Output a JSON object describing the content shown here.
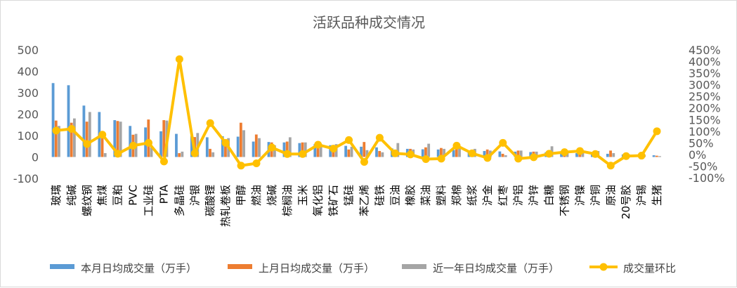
{
  "chart_data": {
    "type": "bar",
    "title": "活跃品种成交情况",
    "categories": [
      "玻璃",
      "纯碱",
      "螺纹钢",
      "焦煤",
      "豆粕",
      "PVC",
      "工业硅",
      "PTA",
      "多晶硅",
      "沪银",
      "碳酸锂",
      "热轧卷板",
      "甲醇",
      "燃油",
      "烧碱",
      "棕榈油",
      "玉米",
      "氧化铝",
      "铁矿石",
      "锰硅",
      "苯乙烯",
      "硅铁",
      "豆油",
      "橡胶",
      "菜油",
      "塑料",
      "郑棉",
      "纸浆",
      "沪金",
      "红枣",
      "沪铝",
      "沪锌",
      "白糖",
      "不锈钢",
      "沪镍",
      "沪铜",
      "原油",
      "20号胶",
      "沪锡",
      "生猪"
    ],
    "series": [
      {
        "name": "本月日均成交量（万手）",
        "values": [
          345,
          335,
          240,
          210,
          172,
          145,
          138,
          120,
          108,
          98,
          92,
          97,
          95,
          72,
          70,
          68,
          65,
          60,
          55,
          52,
          48,
          45,
          40,
          38,
          36,
          35,
          33,
          30,
          28,
          26,
          25,
          23,
          22,
          20,
          18,
          17,
          15,
          12,
          10,
          8
        ]
      },
      {
        "name": "上月日均成交量（万手）",
        "values": [
          170,
          160,
          165,
          90,
          168,
          104,
          175,
          172,
          18,
          93,
          38,
          82,
          160,
          105,
          68,
          72,
          68,
          55,
          40,
          35,
          70,
          28,
          30,
          38,
          45,
          42,
          40,
          30,
          35,
          15,
          30,
          25,
          22,
          18,
          15,
          17,
          30,
          10,
          8,
          6
        ]
      },
      {
        "name": "近一年日均成交量（万手）",
        "values": [
          145,
          180,
          210,
          18,
          165,
          108,
          45,
          170,
          25,
          112,
          22,
          88,
          125,
          88,
          55,
          92,
          68,
          60,
          60,
          48,
          32,
          22,
          65,
          35,
          62,
          38,
          45,
          38,
          30,
          8,
          30,
          25,
          50,
          25,
          30,
          28,
          18,
          12,
          10,
          4
        ]
      },
      {
        "name": "成交量环比",
        "values": [
          1.03,
          1.1,
          0.45,
          0.85,
          0.03,
          0.38,
          0.5,
          -0.3,
          4.1,
          0.05,
          1.35,
          0.5,
          -0.48,
          -0.38,
          0.3,
          0.02,
          0.02,
          0.42,
          0.25,
          0.62,
          -0.32,
          0.72,
          0.05,
          0.0,
          -0.2,
          -0.18,
          0.38,
          0.05,
          -0.15,
          0.5,
          -0.18,
          -0.12,
          0.03,
          0.1,
          0.15,
          0.02,
          -0.48,
          -0.07,
          -0.05,
          1.0
        ]
      }
    ],
    "y_left": {
      "ticks": [
        "500",
        "400",
        "300",
        "200",
        "100",
        "0",
        "-100"
      ],
      "ylim": [
        -100,
        500
      ],
      "step": 100
    },
    "y_right": {
      "ticks": [
        "450%",
        "400%",
        "350%",
        "300%",
        "250%",
        "200%",
        "150%",
        "100%",
        "50%",
        "0%",
        "-50%",
        "-100%"
      ],
      "ylim": [
        -1.0,
        4.5
      ],
      "step": 0.5
    },
    "legend": [
      "本月日均成交量（万手）",
      "上月日均成交量（万手）",
      "近一年日均成交量（万手）",
      "成交量环比"
    ],
    "legend_position": "bottom",
    "grid": false,
    "colors": {
      "current": "#5b9bd5",
      "last": "#ed7d31",
      "year": "#a5a5a5",
      "ratio": "#ffc000",
      "text": "#595959"
    }
  }
}
